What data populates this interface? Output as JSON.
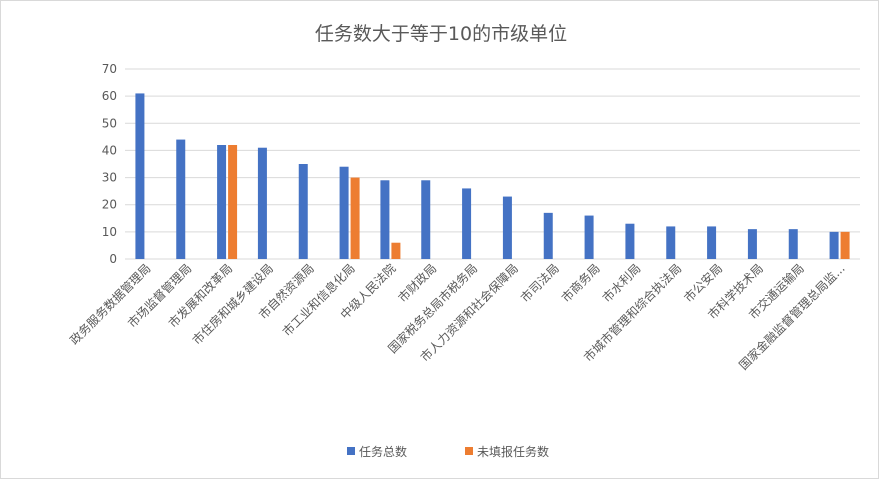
{
  "chart_data": {
    "type": "bar",
    "title": "任务数大于等于10的市级单位",
    "categories": [
      "政务服务数据管理局",
      "市场监督管理局",
      "市发展和改革局",
      "市住房和城乡建设局",
      "市自然资源局",
      "市工业和信息化局",
      "中级人民法院",
      "市财政局",
      "国家税务总局市税务局",
      "市人力资源和社会保障局",
      "市司法局",
      "市商务局",
      "市水利局",
      "市城市管理和综合执法局",
      "市公安局",
      "市科学技术局",
      "市交通运输局",
      "国家金融监督管理总局监..."
    ],
    "series": [
      {
        "name": "任务总数",
        "color": "#4472c4",
        "values": [
          61,
          44,
          42,
          41,
          35,
          34,
          29,
          29,
          26,
          23,
          17,
          16,
          13,
          12,
          12,
          11,
          11,
          10
        ]
      },
      {
        "name": "未填报任务数",
        "color": "#ed7d31",
        "values": [
          null,
          null,
          42,
          null,
          null,
          30,
          6,
          null,
          null,
          null,
          null,
          null,
          null,
          null,
          null,
          null,
          null,
          10
        ]
      }
    ],
    "ylim": [
      0,
      70
    ],
    "yticks": [
      0,
      10,
      20,
      30,
      40,
      50,
      60,
      70
    ],
    "grid": true,
    "legend": "bottom"
  }
}
